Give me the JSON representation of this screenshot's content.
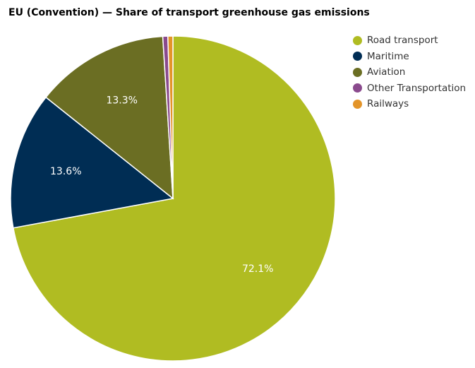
{
  "chart_data": {
    "type": "pie",
    "title": "EU (Convention) — Share of transport greenhouse gas emissions",
    "slices": [
      {
        "label": "Road transport",
        "value": 72.1,
        "display": "72.1%",
        "color": "#b0bc22"
      },
      {
        "label": "Maritime",
        "value": 13.6,
        "display": "13.6%",
        "color": "#002d54"
      },
      {
        "label": "Aviation",
        "value": 13.3,
        "display": "13.3%",
        "color": "#6b6e23"
      },
      {
        "label": "Other Transportation",
        "value": 0.5,
        "display": "",
        "color": "#8a4a8d"
      },
      {
        "label": "Railways",
        "value": 0.5,
        "display": "",
        "color": "#e39429"
      }
    ],
    "legend_position": "top-right"
  }
}
